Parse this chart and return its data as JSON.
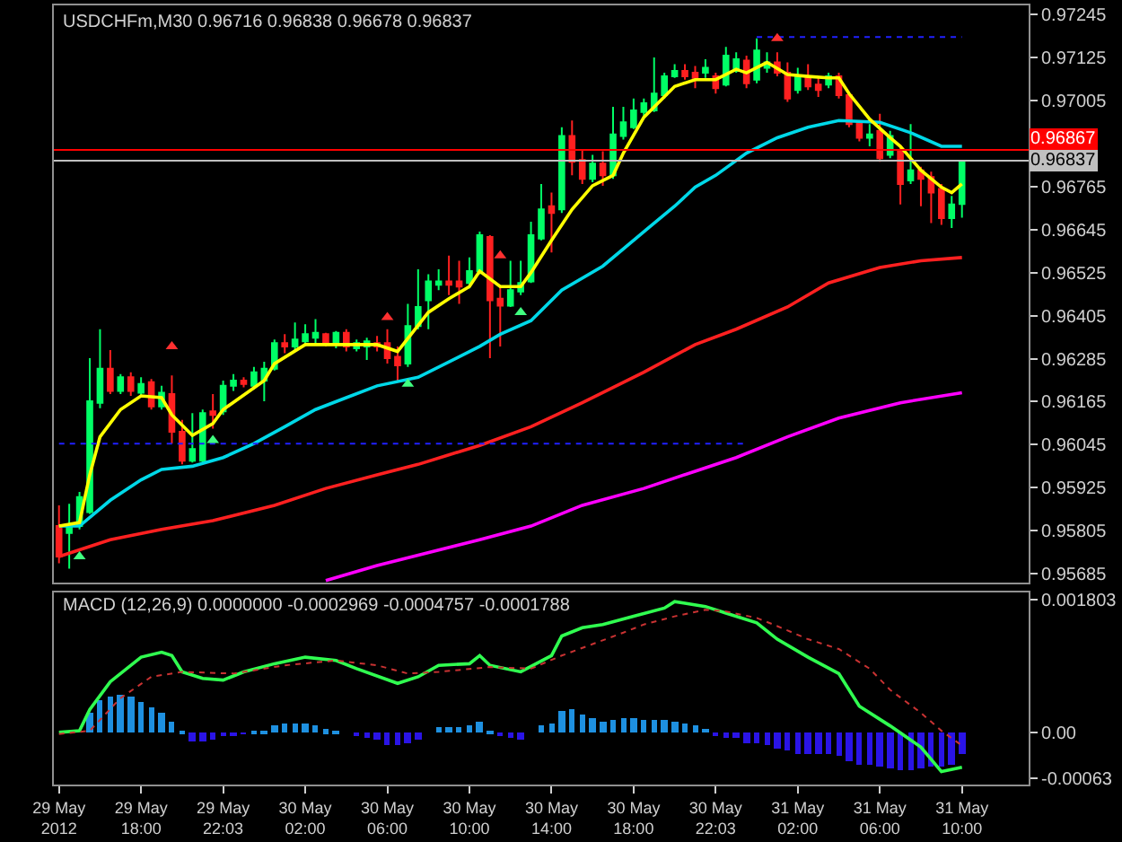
{
  "chart_data": [
    {
      "type": "candlestick",
      "title": "USDCHFm,M30 0.96716 0.96838 0.96678 0.96837",
      "tick_labels": "y",
      "x": [
        "2012-05-29T14:00",
        "2012-05-29T14:30",
        "2012-05-29T15:00",
        "2012-05-29T15:30",
        "2012-05-29T16:00",
        "2012-05-29T16:30",
        "2012-05-29T17:00",
        "2012-05-29T17:30",
        "2012-05-29T18:00",
        "2012-05-29T18:30",
        "2012-05-29T19:00",
        "2012-05-29T19:30",
        "2012-05-29T20:00",
        "2012-05-29T20:30",
        "2012-05-29T21:00",
        "2012-05-29T21:30",
        "2012-05-29T22:00",
        "2012-05-29T22:30",
        "2012-05-29T23:00",
        "2012-05-29T23:30",
        "2012-05-30T00:00",
        "2012-05-30T00:30",
        "2012-05-30T01:00",
        "2012-05-30T01:30",
        "2012-05-30T02:00",
        "2012-05-30T02:30",
        "2012-05-30T03:00",
        "2012-05-30T03:30",
        "2012-05-30T04:00",
        "2012-05-30T04:30",
        "2012-05-30T05:00",
        "2012-05-30T05:30",
        "2012-05-30T06:00",
        "2012-05-30T06:30",
        "2012-05-30T07:00",
        "2012-05-30T07:30",
        "2012-05-30T08:00",
        "2012-05-30T08:30",
        "2012-05-30T09:00",
        "2012-05-30T09:30",
        "2012-05-30T10:00",
        "2012-05-30T10:30",
        "2012-05-30T11:00",
        "2012-05-30T11:30",
        "2012-05-30T12:00",
        "2012-05-30T12:30",
        "2012-05-30T13:00",
        "2012-05-30T13:30",
        "2012-05-30T14:00",
        "2012-05-30T14:30",
        "2012-05-30T15:00",
        "2012-05-30T15:30",
        "2012-05-30T16:00",
        "2012-05-30T16:30",
        "2012-05-30T17:00",
        "2012-05-30T17:30",
        "2012-05-30T18:00",
        "2012-05-30T18:30",
        "2012-05-30T19:00",
        "2012-05-30T19:30",
        "2012-05-30T20:00",
        "2012-05-30T20:30",
        "2012-05-30T21:00",
        "2012-05-30T21:30",
        "2012-05-30T22:00",
        "2012-05-30T22:30",
        "2012-05-30T23:00",
        "2012-05-30T23:30",
        "2012-05-31T00:00",
        "2012-05-31T00:30",
        "2012-05-31T01:00",
        "2012-05-31T01:30",
        "2012-05-31T02:00",
        "2012-05-31T02:30",
        "2012-05-31T03:00",
        "2012-05-31T03:30",
        "2012-05-31T04:00",
        "2012-05-31T04:30",
        "2012-05-31T05:00",
        "2012-05-31T05:30",
        "2012-05-31T06:00",
        "2012-05-31T06:30",
        "2012-05-31T07:00",
        "2012-05-31T07:30",
        "2012-05-31T08:00",
        "2012-05-31T08:30",
        "2012-05-31T09:00",
        "2012-05-31T09:30",
        "2012-05-31T10:00"
      ],
      "ohlc": [
        [
          0.95818,
          0.95876,
          0.95714,
          0.95733
        ],
        [
          0.95799,
          0.9588,
          0.95699,
          0.95818
        ],
        [
          0.95818,
          0.95913,
          0.95809,
          0.95899
        ],
        [
          0.95857,
          0.96286,
          0.95852,
          0.96166
        ],
        [
          0.96162,
          0.96367,
          0.96147,
          0.96257
        ],
        [
          0.96257,
          0.96309,
          0.96186,
          0.96195
        ],
        [
          0.96195,
          0.96242,
          0.96186,
          0.96233
        ],
        [
          0.96233,
          0.96247,
          0.96181,
          0.96195
        ],
        [
          0.9619,
          0.96233,
          0.96176,
          0.96214
        ],
        [
          0.96219,
          0.96228,
          0.96143,
          0.96152
        ],
        [
          0.96152,
          0.96209,
          0.96143,
          0.9619
        ],
        [
          0.96186,
          0.96238,
          0.96048,
          0.96081
        ],
        [
          0.96081,
          0.96114,
          0.9599,
          0.96
        ],
        [
          0.96,
          0.96133,
          0.95995,
          0.96033
        ],
        [
          0.96,
          0.96143,
          0.95995,
          0.96133
        ],
        [
          0.96138,
          0.96186,
          0.9609,
          0.96128
        ],
        [
          0.96138,
          0.96224,
          0.96128,
          0.96209
        ],
        [
          0.96209,
          0.96242,
          0.96195,
          0.96224
        ],
        [
          0.96224,
          0.96233,
          0.96205,
          0.96214
        ],
        [
          0.96209,
          0.96262,
          0.962,
          0.96247
        ],
        [
          0.96224,
          0.96276,
          0.96166,
          0.96257
        ],
        [
          0.96257,
          0.96338,
          0.96252,
          0.96328
        ],
        [
          0.96328,
          0.96353,
          0.963,
          0.96319
        ],
        [
          0.96319,
          0.96386,
          0.96305,
          0.96338
        ],
        [
          0.96333,
          0.96381,
          0.96319,
          0.96353
        ],
        [
          0.96343,
          0.96395,
          0.96328,
          0.96357
        ],
        [
          0.96353,
          0.96357,
          0.96319,
          0.96328
        ],
        [
          0.96328,
          0.96362,
          0.96314,
          0.96357
        ],
        [
          0.96357,
          0.96367,
          0.96305,
          0.96319
        ],
        [
          0.96314,
          0.96338,
          0.96305,
          0.96328
        ],
        [
          0.96319,
          0.96343,
          0.96281,
          0.96333
        ],
        [
          0.96328,
          0.96348,
          0.96305,
          0.96319
        ],
        [
          0.96328,
          0.96367,
          0.96271,
          0.96286
        ],
        [
          0.9629,
          0.96319,
          0.96224,
          0.96266
        ],
        [
          0.96271,
          0.96438,
          0.96262,
          0.96376
        ],
        [
          0.96376,
          0.96534,
          0.96367,
          0.96429
        ],
        [
          0.96448,
          0.9652,
          0.96367,
          0.965
        ],
        [
          0.96491,
          0.96534,
          0.96476,
          0.965
        ],
        [
          0.965,
          0.96572,
          0.96462,
          0.96491
        ],
        [
          0.965,
          0.96558,
          0.96438,
          0.96486
        ],
        [
          0.96496,
          0.96567,
          0.96481,
          0.96529
        ],
        [
          0.96529,
          0.96639,
          0.9652,
          0.96629
        ],
        [
          0.96624,
          0.96629,
          0.96286,
          0.96448
        ],
        [
          0.96452,
          0.96486,
          0.96319,
          0.96433
        ],
        [
          0.96433,
          0.96558,
          0.96429,
          0.96476
        ],
        [
          0.96472,
          0.96558,
          0.96462,
          0.96496
        ],
        [
          0.965,
          0.96667,
          0.96496,
          0.96629
        ],
        [
          0.9662,
          0.96772,
          0.96615,
          0.96701
        ],
        [
          0.9671,
          0.96748,
          0.96581,
          0.96691
        ],
        [
          0.96701,
          0.9693,
          0.96691,
          0.96906
        ],
        [
          0.96906,
          0.96949,
          0.96796,
          0.96834
        ],
        [
          0.96839,
          0.96868,
          0.96772,
          0.96786
        ],
        [
          0.96786,
          0.96853,
          0.96777,
          0.96829
        ],
        [
          0.96829,
          0.96863,
          0.96767,
          0.96796
        ],
        [
          0.96796,
          0.96987,
          0.96786,
          0.9691
        ],
        [
          0.96906,
          0.96987,
          0.96896,
          0.96944
        ],
        [
          0.9693,
          0.9701,
          0.96925,
          0.96977
        ],
        [
          0.96973,
          0.9701,
          0.96958,
          0.96997
        ],
        [
          0.96977,
          0.97125,
          0.96973,
          0.97024
        ],
        [
          0.9702,
          0.97082,
          0.9701,
          0.97072
        ],
        [
          0.97072,
          0.97106,
          0.97068,
          0.97087
        ],
        [
          0.97087,
          0.97106,
          0.97063,
          0.97072
        ],
        [
          0.97082,
          0.97101,
          0.97039,
          0.97068
        ],
        [
          0.97082,
          0.9712,
          0.97068,
          0.97096
        ],
        [
          0.97072,
          0.97082,
          0.97024,
          0.97039
        ],
        [
          0.97049,
          0.97154,
          0.97044,
          0.9713
        ],
        [
          0.97087,
          0.97139,
          0.97082,
          0.9712
        ],
        [
          0.97116,
          0.9713,
          0.97039,
          0.97053
        ],
        [
          0.97063,
          0.97178,
          0.97053,
          0.97144
        ],
        [
          0.97096,
          0.97139,
          0.97082,
          0.97111
        ],
        [
          0.97111,
          0.97139,
          0.97072,
          0.97082
        ],
        [
          0.97082,
          0.97111,
          0.97001,
          0.9701
        ],
        [
          0.97034,
          0.97096,
          0.97024,
          0.97072
        ],
        [
          0.97072,
          0.97106,
          0.97034,
          0.97044
        ],
        [
          0.97049,
          0.97072,
          0.97015,
          0.97034
        ],
        [
          0.97049,
          0.97082,
          0.97039,
          0.97072
        ],
        [
          0.97072,
          0.97082,
          0.9701,
          0.9702
        ],
        [
          0.9702,
          0.97024,
          0.9693,
          0.96939
        ],
        [
          0.96944,
          0.96949,
          0.96891,
          0.96901
        ],
        [
          0.96901,
          0.96939,
          0.96877,
          0.9691
        ],
        [
          0.9692,
          0.96968,
          0.96834,
          0.96844
        ],
        [
          0.96853,
          0.9692,
          0.96844,
          0.96906
        ],
        [
          0.96863,
          0.96882,
          0.96715,
          0.96772
        ],
        [
          0.96782,
          0.96939,
          0.96772,
          0.9681
        ],
        [
          0.9681,
          0.9682,
          0.9671,
          0.96786
        ],
        [
          0.96791,
          0.96806,
          0.96663,
          0.96748
        ],
        [
          0.96758,
          0.96772,
          0.96658,
          0.96677
        ],
        [
          0.96677,
          0.96739,
          0.96649,
          0.96715
        ],
        [
          0.96716,
          0.96838,
          0.96678,
          0.96837
        ]
      ],
      "series": [
        {
          "type": "line",
          "color": "#ff00ff",
          "x": [
            "2012-05-30T03:00",
            "2012-05-30T05:30",
            "2012-05-30T07:30",
            "2012-05-30T10:30",
            "2012-05-30T13:00",
            "2012-05-30T15:30",
            "2012-05-30T18:30",
            "2012-05-30T21:00",
            "2012-05-30T23:00",
            "2012-05-31T01:30",
            "2012-05-31T04:00",
            "2012-05-31T07:00",
            "2012-05-31T10:00"
          ],
          "values": [
            0.95666,
            0.95708,
            0.95737,
            0.9578,
            0.95818,
            0.95876,
            0.95923,
            0.95971,
            0.96009,
            0.96067,
            0.96119,
            0.96162,
            0.9619
          ]
        },
        {
          "type": "line",
          "color": "#ff2020",
          "x": [
            "2012-05-29T14:00",
            "2012-05-29T16:30",
            "2012-05-29T19:00",
            "2012-05-29T21:30",
            "2012-05-30T00:30",
            "2012-05-30T03:00",
            "2012-05-30T05:30",
            "2012-05-30T07:30",
            "2012-05-30T10:30",
            "2012-05-30T13:00",
            "2012-05-30T15:30",
            "2012-05-30T18:30",
            "2012-05-30T21:00",
            "2012-05-30T23:00",
            "2012-05-31T01:30",
            "2012-05-31T03:30",
            "2012-05-31T06:00",
            "2012-05-31T08:00",
            "2012-05-31T10:00"
          ],
          "values": [
            0.95733,
            0.9578,
            0.95809,
            0.95833,
            0.95876,
            0.95923,
            0.95961,
            0.9599,
            0.96043,
            0.96095,
            0.96162,
            0.96247,
            0.96324,
            0.96367,
            0.96429,
            0.96496,
            0.96539,
            0.96558,
            0.96567
          ]
        },
        {
          "type": "line",
          "color": "#00d8e8",
          "x": [
            "2012-05-29T14:00",
            "2012-05-29T15:00",
            "2012-05-29T16:30",
            "2012-05-29T18:00",
            "2012-05-29T19:00",
            "2012-05-29T20:30",
            "2012-05-29T22:00",
            "2012-05-29T23:30",
            "2012-05-30T01:00",
            "2012-05-30T02:30",
            "2012-05-30T04:00",
            "2012-05-30T05:30",
            "2012-05-30T07:30",
            "2012-05-30T10:30",
            "2012-05-30T11:30",
            "2012-05-30T13:00",
            "2012-05-30T14:30",
            "2012-05-30T16:30",
            "2012-05-30T18:30",
            "2012-05-30T20:00",
            "2012-05-30T21:00",
            "2012-05-30T22:00",
            "2012-05-30T23:30",
            "2012-05-31T01:00",
            "2012-05-31T02:30",
            "2012-05-31T04:00",
            "2012-05-31T06:00",
            "2012-05-31T07:30",
            "2012-05-31T09:00",
            "2012-05-31T10:00"
          ],
          "values": [
            0.95818,
            0.95818,
            0.9589,
            0.95947,
            0.95976,
            0.95985,
            0.96009,
            0.96048,
            0.96095,
            0.96143,
            0.96176,
            0.96209,
            0.96233,
            0.96319,
            0.96353,
            0.96391,
            0.96476,
            0.96543,
            0.96639,
            0.9671,
            0.96763,
            0.96796,
            0.96858,
            0.96901,
            0.9693,
            0.96949,
            0.96944,
            0.96915,
            0.96877,
            0.96877
          ]
        },
        {
          "type": "line",
          "color": "#ffff00",
          "x": [
            "2012-05-29T14:00",
            "2012-05-29T15:00",
            "2012-05-29T15:30",
            "2012-05-29T16:00",
            "2012-05-29T17:00",
            "2012-05-29T18:00",
            "2012-05-29T19:00",
            "2012-05-29T19:30",
            "2012-05-29T20:30",
            "2012-05-29T21:30",
            "2012-05-29T22:00",
            "2012-05-30T00:00",
            "2012-05-30T00:30",
            "2012-05-30T02:00",
            "2012-05-30T05:30",
            "2012-05-30T06:30",
            "2012-05-30T08:00",
            "2012-05-30T09:00",
            "2012-05-30T10:00",
            "2012-05-30T10:30",
            "2012-05-30T11:30",
            "2012-05-30T12:30",
            "2012-05-30T13:00",
            "2012-05-30T14:00",
            "2012-05-30T15:00",
            "2012-05-30T16:00",
            "2012-05-30T17:00",
            "2012-05-30T17:30",
            "2012-05-30T18:30",
            "2012-05-30T20:00",
            "2012-05-30T21:00",
            "2012-05-30T22:00",
            "2012-05-30T23:00",
            "2012-05-30T23:30",
            "2012-05-31T00:30",
            "2012-05-31T01:30",
            "2012-05-31T02:30",
            "2012-05-31T03:30",
            "2012-05-31T04:00",
            "2012-05-31T04:30",
            "2012-05-31T05:30",
            "2012-05-31T06:30",
            "2012-05-31T07:00",
            "2012-05-31T08:00",
            "2012-05-31T09:00",
            "2012-05-31T09:30",
            "2012-05-31T10:00"
          ],
          "values": [
            0.95818,
            0.95828,
            0.95961,
            0.96067,
            0.96143,
            0.96181,
            0.96176,
            0.96128,
            0.96071,
            0.96104,
            0.96143,
            0.96224,
            0.96271,
            0.96324,
            0.96324,
            0.96305,
            0.96414,
            0.96452,
            0.96486,
            0.96529,
            0.96486,
            0.96486,
            0.96525,
            0.96615,
            0.96701,
            0.96767,
            0.96796,
            0.96858,
            0.96958,
            0.97044,
            0.97063,
            0.97063,
            0.97092,
            0.97082,
            0.97111,
            0.97077,
            0.97072,
            0.97068,
            0.97068,
            0.97024,
            0.96953,
            0.96901,
            0.96877,
            0.9681,
            0.96763,
            0.96748,
            0.96772
          ]
        },
        {
          "type": "line",
          "color": "#2020ff",
          "line_style": "dotted",
          "x": [
            "2012-05-29T14:00",
            "2012-05-30T23:30"
          ],
          "values": [
            0.96048,
            0.96048
          ]
        },
        {
          "type": "line",
          "color": "#2020ff",
          "line_style": "dotted",
          "x": [
            "2012-05-31T00:00",
            "2012-05-31T10:00"
          ],
          "values": [
            0.97182,
            0.97182
          ]
        },
        {
          "type": "scatter",
          "marker": "triangle",
          "color": "#ff3030",
          "x": [
            "2012-05-29T19:30",
            "2012-05-30T06:00",
            "2012-05-30T11:30",
            "2012-05-31T01:00"
          ],
          "values": [
            0.96319,
            0.964,
            0.96572,
            0.97178
          ]
        },
        {
          "type": "scatter",
          "marker": "triangle",
          "color": "#40ff80",
          "x": [
            "2012-05-29T15:00",
            "2012-05-29T21:30",
            "2012-05-30T07:00",
            "2012-05-30T12:30"
          ],
          "values": [
            0.95733,
            0.96057,
            0.96214,
            0.96414
          ]
        }
      ],
      "xlim": [
        "2012-05-29T13:45",
        "2012-05-31T13:15"
      ],
      "ylim": [
        0.9566,
        0.9727
      ],
      "yticks": [
        0.95685,
        0.95805,
        0.95925,
        0.96045,
        0.96165,
        0.96285,
        0.96405,
        0.96525,
        0.96645,
        0.96765,
        0.97005,
        0.97125,
        0.97245
      ],
      "ref_lines": [
        {
          "axis": "y",
          "value": 0.96867,
          "label": "0.96867",
          "color": "#ff0000"
        },
        {
          "axis": "y",
          "value": 0.96837,
          "label": "0.96837",
          "color": "#c0c0c0"
        }
      ]
    },
    {
      "type": "bar",
      "title": "MACD (12,26,9) 0.0000000 -0.0002969 -0.0004757 -0.0001788",
      "x": [
        "2012-05-29T14:00",
        "2012-05-29T14:30",
        "2012-05-29T15:00",
        "2012-05-29T15:30",
        "2012-05-29T16:00",
        "2012-05-29T16:30",
        "2012-05-29T17:00",
        "2012-05-29T17:30",
        "2012-05-29T18:00",
        "2012-05-29T18:30",
        "2012-05-29T19:00",
        "2012-05-29T19:30",
        "2012-05-29T20:00",
        "2012-05-29T20:30",
        "2012-05-29T21:00",
        "2012-05-29T21:30",
        "2012-05-29T22:00",
        "2012-05-29T22:30",
        "2012-05-29T23:00",
        "2012-05-29T23:30",
        "2012-05-30T00:00",
        "2012-05-30T00:30",
        "2012-05-30T01:00",
        "2012-05-30T01:30",
        "2012-05-30T02:00",
        "2012-05-30T02:30",
        "2012-05-30T03:00",
        "2012-05-30T03:30",
        "2012-05-30T04:00",
        "2012-05-30T04:30",
        "2012-05-30T05:00",
        "2012-05-30T05:30",
        "2012-05-30T06:00",
        "2012-05-30T06:30",
        "2012-05-30T07:00",
        "2012-05-30T07:30",
        "2012-05-30T08:00",
        "2012-05-30T08:30",
        "2012-05-30T09:00",
        "2012-05-30T09:30",
        "2012-05-30T10:00",
        "2012-05-30T10:30",
        "2012-05-30T11:00",
        "2012-05-30T11:30",
        "2012-05-30T12:00",
        "2012-05-30T12:30",
        "2012-05-30T13:00",
        "2012-05-30T13:30",
        "2012-05-30T14:00",
        "2012-05-30T14:30",
        "2012-05-30T15:00",
        "2012-05-30T15:30",
        "2012-05-30T16:00",
        "2012-05-30T16:30",
        "2012-05-30T17:00",
        "2012-05-30T17:30",
        "2012-05-30T18:00",
        "2012-05-30T18:30",
        "2012-05-30T19:00",
        "2012-05-30T19:30",
        "2012-05-30T20:00",
        "2012-05-30T20:30",
        "2012-05-30T21:00",
        "2012-05-30T21:30",
        "2012-05-30T22:00",
        "2012-05-30T22:30",
        "2012-05-30T23:00",
        "2012-05-30T23:30",
        "2012-05-31T00:00",
        "2012-05-31T00:30",
        "2012-05-31T01:00",
        "2012-05-31T01:30",
        "2012-05-31T02:00",
        "2012-05-31T02:30",
        "2012-05-31T03:00",
        "2012-05-31T03:30",
        "2012-05-31T04:00",
        "2012-05-31T04:30",
        "2012-05-31T05:00",
        "2012-05-31T05:30",
        "2012-05-31T06:00",
        "2012-05-31T06:30",
        "2012-05-31T07:00",
        "2012-05-31T07:30",
        "2012-05-31T08:00",
        "2012-05-31T08:30",
        "2012-05-31T09:00",
        "2012-05-31T09:30",
        "2012-05-31T10:00"
      ],
      "series": [
        {
          "type": "bar",
          "values": [
            0,
            0,
            0,
            0.000274,
            0.000445,
            0.000496,
            0.000519,
            0.00049,
            0.000423,
            0.000341,
            0.000274,
            0.00014,
            1.1e-05,
            -0.000111,
            -0.000111,
            -8.9e-05,
            -2.2e-05,
            -2.2e-05,
            -1.1e-05,
            1.1e-05,
            2.2e-05,
            0.000111,
            0.000134,
            0.000134,
            0.000134,
            0.000111,
            4.5e-05,
            2.2e-05,
            0,
            -4.5e-05,
            -6.7e-05,
            -8.9e-05,
            -0.000156,
            -0.000178,
            -0.000134,
            -8.9e-05,
            0,
            6.7e-05,
            8.9e-05,
            8.9e-05,
            0.000111,
            0.000156,
            2.2e-05,
            -4.5e-05,
            -6.7e-05,
            -8.9e-05,
            0,
            0.000111,
            0.000134,
            0.000289,
            0.000312,
            0.000252,
            0.0002,
            0.000162,
            0.000178,
            0.0002,
            0.0002,
            0.000178,
            0.000178,
            0.000178,
            0.000149,
            0.000127,
            0.000105,
            5.1e-05,
            -3.8e-05,
            -6e-05,
            -7.3e-05,
            -0.000134,
            -0.000149,
            -0.000171,
            -0.000207,
            -0.000245,
            -0.000283,
            -0.000296,
            -0.000296,
            -0.000296,
            -0.000318,
            -0.000394,
            -0.00043,
            -0.000445,
            -0.000467,
            -0.00049,
            -0.000505,
            -0.000505,
            -0.00049,
            -0.000467,
            -0.000467,
            -0.000445,
            -0.0002969
          ],
          "colors": [
            "#1e90e0",
            "#1e90e0",
            "#1e90e0",
            "#1e90e0",
            "#1e90e0",
            "#1e90e0",
            "#1e90e0",
            "#1e90e0",
            "#1e90e0",
            "#1e90e0",
            "#1e90e0",
            "#1e90e0",
            "#1e90e0",
            "#2a14e6",
            "#2a14e6",
            "#2a14e6",
            "#2a14e6",
            "#2a14e6",
            "#2a14e6",
            "#1e90e0",
            "#1e90e0",
            "#1e90e0",
            "#1e90e0",
            "#1e90e0",
            "#1e90e0",
            "#1e90e0",
            "#1e90e0",
            "#1e90e0",
            "#1e90e0",
            "#2a14e6",
            "#2a14e6",
            "#2a14e6",
            "#2a14e6",
            "#2a14e6",
            "#2a14e6",
            "#2a14e6",
            "#1e90e0",
            "#1e90e0",
            "#1e90e0",
            "#1e90e0",
            "#1e90e0",
            "#1e90e0",
            "#1e90e0",
            "#2a14e6",
            "#2a14e6",
            "#2a14e6",
            "#1e90e0",
            "#1e90e0",
            "#1e90e0",
            "#1e90e0",
            "#1e90e0",
            "#1e90e0",
            "#1e90e0",
            "#1e90e0",
            "#1e90e0",
            "#1e90e0",
            "#1e90e0",
            "#1e90e0",
            "#1e90e0",
            "#1e90e0",
            "#1e90e0",
            "#1e90e0",
            "#1e90e0",
            "#1e90e0",
            "#2a14e6",
            "#2a14e6",
            "#2a14e6",
            "#2a14e6",
            "#2a14e6",
            "#2a14e6",
            "#2a14e6",
            "#2a14e6",
            "#2a14e6",
            "#2a14e6",
            "#2a14e6",
            "#2a14e6",
            "#2a14e6",
            "#2a14e6",
            "#2a14e6",
            "#2a14e6",
            "#2a14e6",
            "#2a14e6",
            "#2a14e6",
            "#2a14e6",
            "#2a14e6",
            "#2a14e6",
            "#2a14e6",
            "#2a14e6",
            "#2a14e6"
          ]
        },
        {
          "type": "line",
          "color": "#30ff50",
          "x": [
            "2012-05-29T14:00",
            "2012-05-29T15:00",
            "2012-05-29T15:30",
            "2012-05-29T16:30",
            "2012-05-29T18:00",
            "2012-05-29T19:00",
            "2012-05-29T19:30",
            "2012-05-29T20:00",
            "2012-05-29T21:00",
            "2012-05-29T22:00",
            "2012-05-29T23:00",
            "2012-05-30T00:30",
            "2012-05-30T02:00",
            "2012-05-30T03:30",
            "2012-05-30T04:30",
            "2012-05-30T06:30",
            "2012-05-30T07:30",
            "2012-05-30T08:30",
            "2012-05-30T10:00",
            "2012-05-30T10:30",
            "2012-05-30T11:00",
            "2012-05-30T12:30",
            "2012-05-30T14:00",
            "2012-05-30T14:30",
            "2012-05-30T15:30",
            "2012-05-30T16:30",
            "2012-05-30T18:00",
            "2012-05-30T19:30",
            "2012-05-30T20:00",
            "2012-05-30T20:30",
            "2012-05-30T21:30",
            "2012-05-30T22:30",
            "2012-05-31T00:00",
            "2012-05-31T01:00",
            "2012-05-31T02:30",
            "2012-05-31T04:00",
            "2012-05-31T05:00",
            "2012-05-31T06:30",
            "2012-05-31T08:00",
            "2012-05-31T09:00",
            "2012-05-31T10:00"
          ],
          "values": [
            0,
            2.2e-05,
            0.000312,
            0.00069,
            0.001024,
            0.001091,
            0.001046,
            0.000824,
            0.000735,
            0.000712,
            0.000824,
            0.000935,
            0.001024,
            0.000979,
            0.000868,
            0.000668,
            0.000757,
            0.000913,
            0.000935,
            0.001046,
            0.000913,
            0.000824,
            0.001046,
            0.001313,
            0.001425,
            0.001469,
            0.00158,
            0.001692,
            0.001781,
            0.001759,
            0.001714,
            0.001625,
            0.001491,
            0.001269,
            0.001024,
            0.000801,
            0.000356,
            8.9e-05,
            -0.0002,
            -0.000534,
            -0.0004757
          ]
        },
        {
          "type": "line",
          "color": "#c83232",
          "line_style": "dotted",
          "x": [
            "2012-05-29T14:00",
            "2012-05-29T15:30",
            "2012-05-29T17:00",
            "2012-05-29T18:30",
            "2012-05-29T20:00",
            "2012-05-29T22:30",
            "2012-05-30T01:00",
            "2012-05-30T03:30",
            "2012-05-30T05:30",
            "2012-05-30T07:00",
            "2012-05-30T08:30",
            "2012-05-30T11:00",
            "2012-05-30T13:00",
            "2012-05-30T14:30",
            "2012-05-30T16:00",
            "2012-05-30T17:30",
            "2012-05-30T18:30",
            "2012-05-30T20:00",
            "2012-05-30T21:30",
            "2012-05-30T22:30",
            "2012-05-31T00:00",
            "2012-05-31T01:00",
            "2012-05-31T02:30",
            "2012-05-31T04:00",
            "2012-05-31T05:30",
            "2012-05-31T06:30",
            "2012-05-31T08:00",
            "2012-05-31T09:00",
            "2012-05-31T10:00"
          ],
          "values": [
            -2.2e-05,
            2.2e-05,
            0.000467,
            0.000757,
            0.000824,
            0.000801,
            0.000913,
            0.000979,
            0.000913,
            0.000801,
            0.000824,
            0.00089,
            0.000868,
            0.001046,
            0.001202,
            0.001358,
            0.001469,
            0.00158,
            0.00167,
            0.001647,
            0.001558,
            0.001447,
            0.001269,
            0.001135,
            0.000868,
            0.000579,
            0.000267,
            2.2e-05,
            -0.0001788
          ]
        }
      ],
      "xlim": [
        "2012-05-29T13:45",
        "2012-05-31T13:15"
      ],
      "xticks": [
        {
          "value": "2012-05-29T14:00",
          "label": "29 May 2012"
        },
        {
          "value": "2012-05-29T18:00",
          "label": "29 May 18:00"
        },
        {
          "value": "2012-05-29T22:00",
          "label": "29 May 22:03"
        },
        {
          "value": "2012-05-30T02:00",
          "label": "30 May 02:00"
        },
        {
          "value": "2012-05-30T06:00",
          "label": "30 May 06:00"
        },
        {
          "value": "2012-05-30T10:00",
          "label": "30 May 10:00"
        },
        {
          "value": "2012-05-30T14:00",
          "label": "30 May 14:00"
        },
        {
          "value": "2012-05-30T18:00",
          "label": "30 May 18:00"
        },
        {
          "value": "2012-05-30T22:00",
          "label": "30 May 22:03"
        },
        {
          "value": "2012-05-31T02:00",
          "label": "31 May 02:00"
        },
        {
          "value": "2012-05-31T06:00",
          "label": "31 May 06:00"
        },
        {
          "value": "2012-05-31T10:00",
          "label": "31 May 10:00"
        }
      ],
      "ylim": [
        -0.00071,
        0.00191
      ],
      "yticks": [
        0.001803,
        {
          "value": 0,
          "label": "0.00"
        },
        -0.00063
      ]
    }
  ]
}
